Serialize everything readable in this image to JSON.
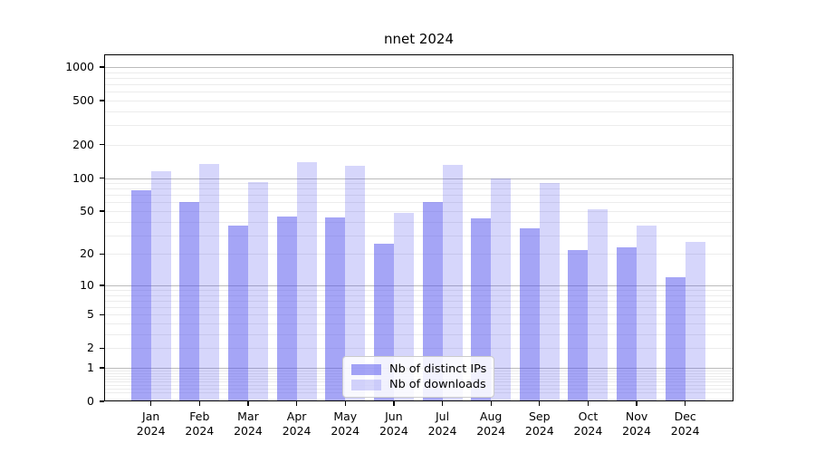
{
  "title": "nnet 2024",
  "legend": {
    "items": [
      {
        "label": "Nb of distinct IPs",
        "color": "rgba(82,82,238,0.52)"
      },
      {
        "label": "Nb of downloads",
        "color": "rgba(82,82,238,0.235)"
      }
    ]
  },
  "axes": {
    "y_tick_labels": [
      "1000",
      "500",
      "200",
      "100",
      "50",
      "20",
      "10",
      "5",
      "2",
      "1",
      "0"
    ],
    "x_tick_months": [
      "Jan",
      "Feb",
      "Mar",
      "Apr",
      "May",
      "Jun",
      "Jul",
      "Aug",
      "Sep",
      "Oct",
      "Nov",
      "Dec"
    ],
    "x_tick_year": "2024"
  },
  "chart_data": {
    "type": "bar",
    "title": "nnet 2024",
    "scale": "log1p",
    "categories": [
      "Jan 2024",
      "Feb 2024",
      "Mar 2024",
      "Apr 2024",
      "May 2024",
      "Jun 2024",
      "Jul 2024",
      "Aug 2024",
      "Sep 2024",
      "Oct 2024",
      "Nov 2024",
      "Dec 2024"
    ],
    "series": [
      {
        "name": "Nb of distinct IPs",
        "color": "rgba(82,82,238,0.52)",
        "values": [
          78,
          60,
          37,
          45,
          44,
          25,
          61,
          43,
          35,
          22,
          23,
          12
        ]
      },
      {
        "name": "Nb of downloads",
        "color": "rgba(82,82,238,0.235)",
        "values": [
          115,
          133,
          91,
          140,
          130,
          48,
          132,
          100,
          90,
          52,
          37,
          26
        ]
      }
    ],
    "xlabel": "",
    "ylabel": "",
    "y_ticks": [
      0,
      1,
      2,
      5,
      10,
      20,
      50,
      100,
      200,
      500,
      1000
    ],
    "ylim": [
      0,
      1300
    ],
    "grid": {
      "major_lines": [
        1,
        10,
        100,
        1000
      ],
      "minor": true
    },
    "legend_position": "lower center",
    "colors": {
      "grid_major": "#bbbbbb",
      "grid_minor": "#ececec",
      "axis": "#000000",
      "background": "#ffffff"
    }
  }
}
